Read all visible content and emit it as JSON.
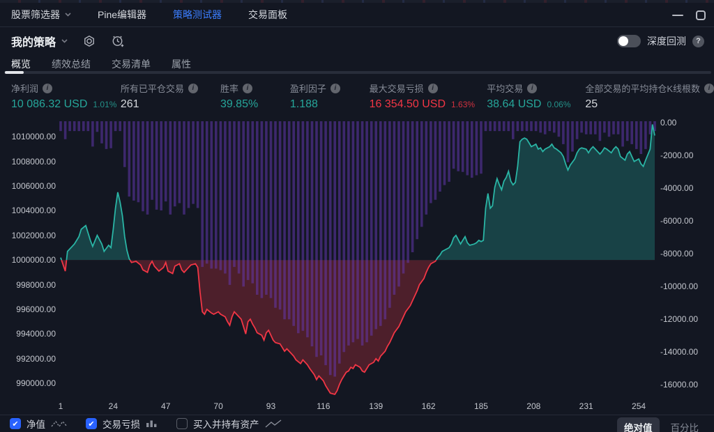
{
  "topbar": {
    "tabs": [
      {
        "label": "股票筛选器",
        "has_dropdown": true,
        "active": false
      },
      {
        "label": "Pine编辑器",
        "has_dropdown": false,
        "active": false
      },
      {
        "label": "策略测试器",
        "has_dropdown": false,
        "active": true
      },
      {
        "label": "交易面板",
        "has_dropdown": false,
        "active": false
      }
    ]
  },
  "toolbar": {
    "strategy_name": "我的策略",
    "deep_backtest_label": "深度回测",
    "help_glyph": "?"
  },
  "sub_tabs": [
    {
      "label": "概览",
      "active": true
    },
    {
      "label": "绩效总结",
      "active": false
    },
    {
      "label": "交易清单",
      "active": false
    },
    {
      "label": "属性",
      "active": false
    }
  ],
  "stats": [
    {
      "label": "净利润",
      "value": "10 086.32 USD",
      "pct": "1.01%",
      "color": "green"
    },
    {
      "label": "所有已平仓交易",
      "value": "261",
      "pct": "",
      "color": "neutral"
    },
    {
      "label": "胜率",
      "value": "39.85%",
      "pct": "",
      "color": "green"
    },
    {
      "label": "盈利因子",
      "value": "1.188",
      "pct": "",
      "color": "green"
    },
    {
      "label": "最大交易亏损",
      "value": "16 354.50 USD",
      "pct": "1.63%",
      "color": "red"
    },
    {
      "label": "平均交易",
      "value": "38.64 USD",
      "pct": "0.06%",
      "color": "green"
    },
    {
      "label": "全部交易的平均持仓K线根数",
      "value": "25",
      "pct": "",
      "color": "neutral"
    }
  ],
  "legend": {
    "items": [
      {
        "label": "净值",
        "checked": true,
        "icon": "equity-dashed-line-icon"
      },
      {
        "label": "交易亏损",
        "checked": true,
        "icon": "drawdown-bars-icon"
      },
      {
        "label": "买入并持有资产",
        "checked": false,
        "icon": "buy-hold-line-icon"
      }
    ],
    "mode_buttons": [
      {
        "label": "绝对值",
        "active": true
      },
      {
        "label": "百分比",
        "active": false
      }
    ]
  },
  "colors": {
    "background": "#131722",
    "accent_blue": "#2962ff",
    "positive_green": "#26a69a",
    "negative_red": "#f23645",
    "drawdown_purple": "#673ab7",
    "text_primary": "#d1d4dc",
    "text_secondary": "#787b86"
  },
  "chart_data": {
    "type": "area",
    "title": "",
    "baseline": 1000000,
    "left_axis_labels": [
      "1010000.00",
      "1008000.00",
      "1006000.00",
      "1004000.00",
      "1002000.00",
      "1000000.00",
      "998000.00",
      "996000.00",
      "994000.00",
      "992000.00",
      "990000.00"
    ],
    "right_axis_labels": [
      "0.00",
      "-2000.00",
      "-4000.00",
      "-6000.00",
      "-8000.00",
      "-10000.00",
      "-12000.00",
      "-14000.00",
      "-16000.00"
    ],
    "x_tick_labels": [
      "1",
      "24",
      "47",
      "70",
      "93",
      "116",
      "139",
      "162",
      "185",
      "208",
      "231",
      "254"
    ],
    "x_range": [
      1,
      261
    ],
    "left_axis_range": [
      989100,
      1011600
    ],
    "right_axis_range": [
      -16600,
      340
    ],
    "legend_position": "bottom",
    "grid": false,
    "series": [
      {
        "name": "净值",
        "type": "area",
        "axis": "left",
        "points": [
          [
            1,
            1000200
          ],
          [
            3,
            999100
          ],
          [
            4,
            1000700
          ],
          [
            7,
            1001300
          ],
          [
            9,
            1001900
          ],
          [
            10,
            1002500
          ],
          [
            12,
            1002800
          ],
          [
            14,
            1001600
          ],
          [
            15,
            1001100
          ],
          [
            17,
            1002000
          ],
          [
            19,
            1001300
          ],
          [
            20,
            1000700
          ],
          [
            22,
            1001200
          ],
          [
            23,
            1001000
          ],
          [
            24,
            1002500
          ],
          [
            25,
            1004200
          ],
          [
            26,
            1005500
          ],
          [
            27,
            1004700
          ],
          [
            28,
            1003600
          ],
          [
            29,
            1001900
          ],
          [
            30,
            1000800
          ],
          [
            31,
            1000100
          ],
          [
            32,
            999800
          ],
          [
            34,
            999900
          ],
          [
            36,
            999600
          ],
          [
            37,
            999200
          ],
          [
            39,
            999000
          ],
          [
            40,
            999600
          ],
          [
            41,
            999900
          ],
          [
            42,
            999500
          ],
          [
            44,
            999100
          ],
          [
            46,
            999400
          ],
          [
            47,
            999800
          ],
          [
            48,
            999100
          ],
          [
            50,
            998900
          ],
          [
            51,
            999500
          ],
          [
            53,
            999700
          ],
          [
            54,
            999200
          ],
          [
            55,
            999000
          ],
          [
            57,
            999400
          ],
          [
            58,
            999600
          ],
          [
            60,
            999700
          ],
          [
            61,
            999400
          ],
          [
            62,
            997400
          ],
          [
            63,
            995800
          ],
          [
            64,
            995600
          ],
          [
            65,
            996000
          ],
          [
            67,
            995700
          ],
          [
            68,
            995600
          ],
          [
            70,
            995800
          ],
          [
            71,
            995600
          ],
          [
            73,
            995400
          ],
          [
            74,
            995000
          ],
          [
            75,
            994700
          ],
          [
            76,
            995400
          ],
          [
            77,
            995800
          ],
          [
            78,
            995600
          ],
          [
            80,
            995200
          ],
          [
            81,
            994600
          ],
          [
            82,
            994000
          ],
          [
            83,
            995000
          ],
          [
            84,
            995200
          ],
          [
            85,
            994800
          ],
          [
            86,
            994500
          ],
          [
            87,
            994100
          ],
          [
            89,
            993900
          ],
          [
            90,
            993500
          ],
          [
            91,
            994100
          ],
          [
            92,
            994300
          ],
          [
            93,
            993900
          ],
          [
            94,
            993500
          ],
          [
            95,
            993300
          ],
          [
            97,
            993200
          ],
          [
            98,
            992900
          ],
          [
            99,
            992600
          ],
          [
            100,
            992800
          ],
          [
            102,
            992400
          ],
          [
            103,
            992200
          ],
          [
            104,
            991900
          ],
          [
            106,
            991600
          ],
          [
            107,
            991900
          ],
          [
            109,
            991500
          ],
          [
            110,
            991200
          ],
          [
            112,
            990700
          ],
          [
            113,
            990300
          ],
          [
            114,
            990600
          ],
          [
            116,
            990200
          ],
          [
            117,
            989800
          ],
          [
            118,
            989500
          ],
          [
            119,
            989200
          ],
          [
            121,
            989100
          ],
          [
            122,
            989400
          ],
          [
            123,
            989900
          ],
          [
            124,
            990300
          ],
          [
            125,
            990600
          ],
          [
            126,
            990900
          ],
          [
            127,
            991000
          ],
          [
            128,
            991300
          ],
          [
            129,
            991200
          ],
          [
            130,
            991500
          ],
          [
            132,
            991300
          ],
          [
            133,
            991000
          ],
          [
            134,
            990900
          ],
          [
            135,
            991200
          ],
          [
            136,
            991500
          ],
          [
            138,
            991700
          ],
          [
            139,
            992000
          ],
          [
            140,
            991800
          ],
          [
            141,
            992200
          ],
          [
            143,
            992600
          ],
          [
            144,
            993000
          ],
          [
            145,
            993300
          ],
          [
            146,
            993700
          ],
          [
            147,
            994100
          ],
          [
            149,
            994600
          ],
          [
            150,
            995000
          ],
          [
            151,
            995400
          ],
          [
            152,
            995800
          ],
          [
            154,
            996300
          ],
          [
            155,
            996700
          ],
          [
            156,
            997100
          ],
          [
            157,
            997500
          ],
          [
            158,
            998000
          ],
          [
            160,
            998500
          ],
          [
            161,
            999000
          ],
          [
            162,
            999400
          ],
          [
            163,
            999700
          ],
          [
            165,
            999900
          ],
          [
            166,
            1000200
          ],
          [
            167,
            1000400
          ],
          [
            168,
            1000700
          ],
          [
            169,
            1000800
          ],
          [
            171,
            1001000
          ],
          [
            172,
            1001300
          ],
          [
            173,
            1001800
          ],
          [
            174,
            1002000
          ],
          [
            176,
            1001300
          ],
          [
            177,
            1001600
          ],
          [
            178,
            1001900
          ],
          [
            179,
            1001400
          ],
          [
            180,
            1001200
          ],
          [
            182,
            1001300
          ],
          [
            183,
            1001400
          ],
          [
            184,
            1001600
          ],
          [
            185,
            1001500
          ],
          [
            186,
            1001600
          ],
          [
            187,
            1004200
          ],
          [
            188,
            1005400
          ],
          [
            189,
            1004200
          ],
          [
            190,
            1004400
          ],
          [
            191,
            1005900
          ],
          [
            192,
            1006600
          ],
          [
            193,
            1006100
          ],
          [
            194,
            1005700
          ],
          [
            195,
            1006400
          ],
          [
            196,
            1006700
          ],
          [
            197,
            1007200
          ],
          [
            198,
            1006400
          ],
          [
            199,
            1006100
          ],
          [
            200,
            1006300
          ],
          [
            201,
            1007600
          ],
          [
            202,
            1009600
          ],
          [
            203,
            1009800
          ],
          [
            204,
            1009900
          ],
          [
            205,
            1009800
          ],
          [
            206,
            1009500
          ],
          [
            207,
            1009200
          ],
          [
            209,
            1009400
          ],
          [
            210,
            1009000
          ],
          [
            211,
            1009100
          ],
          [
            212,
            1008800
          ],
          [
            213,
            1009000
          ],
          [
            215,
            1009200
          ],
          [
            216,
            1009400
          ],
          [
            217,
            1009100
          ],
          [
            218,
            1009000
          ],
          [
            220,
            1008700
          ],
          [
            221,
            1008400
          ],
          [
            222,
            1007800
          ],
          [
            223,
            1007300
          ],
          [
            224,
            1007700
          ],
          [
            226,
            1008200
          ],
          [
            227,
            1008700
          ],
          [
            228,
            1009000
          ],
          [
            229,
            1009100
          ],
          [
            231,
            1009000
          ],
          [
            232,
            1008700
          ],
          [
            233,
            1009000
          ],
          [
            234,
            1009200
          ],
          [
            235,
            1009000
          ],
          [
            237,
            1008600
          ],
          [
            238,
            1008800
          ],
          [
            239,
            1009100
          ],
          [
            240,
            1009000
          ],
          [
            242,
            1008700
          ],
          [
            243,
            1009000
          ],
          [
            244,
            1009200
          ],
          [
            245,
            1009000
          ],
          [
            246,
            1008400
          ],
          [
            248,
            1008100
          ],
          [
            249,
            1008600
          ],
          [
            250,
            1008800
          ],
          [
            251,
            1008400
          ],
          [
            252,
            1008000
          ],
          [
            254,
            1008200
          ],
          [
            255,
            1007800
          ],
          [
            256,
            1007600
          ],
          [
            257,
            1008100
          ],
          [
            259,
            1009000
          ],
          [
            260,
            1011000
          ],
          [
            261,
            1010100
          ]
        ]
      },
      {
        "name": "交易亏损",
        "type": "bars",
        "axis": "right",
        "bar_step": 2,
        "max_drawdown": 16354.5,
        "note": "bar depth equals running equity peak minus current equity, plotted downward from 0 on the right axis"
      }
    ]
  }
}
